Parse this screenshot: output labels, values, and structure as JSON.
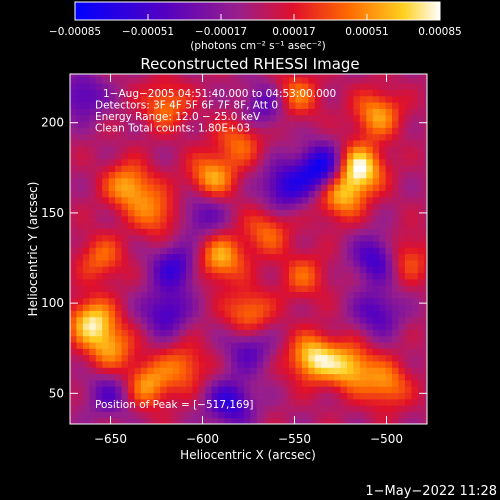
{
  "chart_data": {
    "type": "heatmap",
    "title": "Reconstructed RHESSI Image",
    "xlabel": "Heliocentric X (arcsec)",
    "ylabel": "Heliocentric Y (arcsec)",
    "xlim": [
      -672,
      -478
    ],
    "ylim": [
      33,
      227
    ],
    "x_ticks": [
      -650,
      -600,
      -550,
      -500
    ],
    "x_tick_labels": [
      "−650",
      "−600",
      "−550",
      "−500"
    ],
    "y_ticks": [
      50,
      100,
      150,
      200
    ],
    "y_tick_labels": [
      "50",
      "100",
      "150",
      "200"
    ],
    "colorbar": {
      "range": [
        -0.00085,
        0.00085
      ],
      "ticks": [
        -0.00085,
        -0.00051,
        -0.00017,
        0.00017,
        0.00051,
        0.00085
      ],
      "tick_labels": [
        "−0.00085",
        "−0.00051",
        "−0.00017",
        "0.00017",
        "0.00051",
        "0.00085"
      ],
      "unit_label": "(photons cm⁻² s⁻¹ asec⁻²)",
      "colormap": "black-blue-purple-red-orange-yellow-white"
    },
    "annotations": [
      "1−Aug−2005 04:51:40.000 to 04:53:00.000",
      "Detectors: 3F 4F 5F 6F 7F 8F, Att 0",
      "Energy Range: 12.0 − 25.0 keV",
      "Clean     Total counts: 1.80E+03"
    ],
    "peak_label": "Position of Peak = [−517,169]",
    "hotspots": [
      {
        "x": -515,
        "y": 175,
        "value": 0.00085
      },
      {
        "x": -525,
        "y": 160,
        "value": 0.00062
      },
      {
        "x": -505,
        "y": 205,
        "value": 0.00055
      },
      {
        "x": -660,
        "y": 90,
        "value": 0.00072
      },
      {
        "x": -650,
        "y": 75,
        "value": 0.0005
      },
      {
        "x": -640,
        "y": 165,
        "value": 0.0006
      },
      {
        "x": -625,
        "y": 150,
        "value": 0.00045
      },
      {
        "x": -595,
        "y": 170,
        "value": 0.00058
      },
      {
        "x": -580,
        "y": 190,
        "value": 0.0004
      },
      {
        "x": -590,
        "y": 125,
        "value": 0.0006
      },
      {
        "x": -575,
        "y": 95,
        "value": 0.00048
      },
      {
        "x": -540,
        "y": 70,
        "value": 0.00075
      },
      {
        "x": -520,
        "y": 65,
        "value": 0.00065
      },
      {
        "x": -500,
        "y": 55,
        "value": 0.0005
      },
      {
        "x": -630,
        "y": 55,
        "value": 0.00055
      },
      {
        "x": -610,
        "y": 65,
        "value": 0.00042
      },
      {
        "x": -550,
        "y": 215,
        "value": 0.00048
      },
      {
        "x": -565,
        "y": 140,
        "value": 0.0004
      },
      {
        "x": -620,
        "y": 210,
        "value": 0.00045
      },
      {
        "x": -490,
        "y": 125,
        "value": 0.00042
      },
      {
        "x": -545,
        "y": 115,
        "value": 0.00036
      },
      {
        "x": -655,
        "y": 125,
        "value": 0.0004
      }
    ],
    "coldspots": [
      {
        "x": -535,
        "y": 175,
        "value": -0.00085
      },
      {
        "x": -505,
        "y": 125,
        "value": -0.0006
      },
      {
        "x": -615,
        "y": 120,
        "value": -0.00055
      },
      {
        "x": -620,
        "y": 95,
        "value": -0.0005
      },
      {
        "x": -555,
        "y": 165,
        "value": -0.0006
      },
      {
        "x": -565,
        "y": 210,
        "value": -0.00045
      },
      {
        "x": -585,
        "y": 45,
        "value": -0.0006
      },
      {
        "x": -505,
        "y": 95,
        "value": -0.00045
      },
      {
        "x": -650,
        "y": 50,
        "value": -0.0004
      },
      {
        "x": -600,
        "y": 150,
        "value": -0.0004
      },
      {
        "x": -665,
        "y": 215,
        "value": -0.00045
      },
      {
        "x": -575,
        "y": 75,
        "value": -0.0004
      }
    ]
  },
  "footer": {
    "timestamp": "1−May−2022 11:28"
  }
}
